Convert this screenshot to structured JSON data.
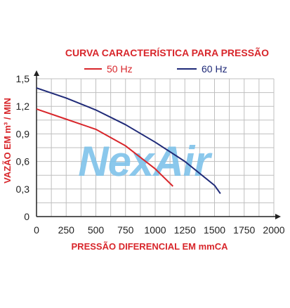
{
  "watermark": {
    "text": "NexAir",
    "color": "#7fc3ea"
  },
  "colors": {
    "series_50hz": "#d8262b",
    "series_60hz": "#1f2a78",
    "title": "#d8262b",
    "axis_label": "#d8262b",
    "grid": "#bfbfbf",
    "axis": "#222222"
  },
  "chart_data": {
    "type": "line",
    "title": "CURVA CARACTERÍSTICA PARA PRESSÃO",
    "xlabel": "PRESSÃO DIFERENCIAL EM mmCA",
    "ylabel": "VAZÃO EM m³ / MIN",
    "xlim": [
      0,
      2000
    ],
    "ylim": [
      0,
      1.5
    ],
    "xticks": [
      0,
      250,
      500,
      750,
      1000,
      1250,
      1500,
      1750,
      2000
    ],
    "xtick_labels": [
      "0",
      "250",
      "500",
      "750",
      "1000",
      "1250",
      "1500",
      "1750",
      "2000"
    ],
    "yticks": [
      0,
      0.3,
      0.6,
      0.9,
      1.2,
      1.5
    ],
    "ytick_labels": [
      "0",
      "0,3",
      "0,6",
      "0,9",
      "1,2",
      "1,5"
    ],
    "grid": true,
    "legend_position": "top",
    "series": [
      {
        "name": "50 Hz",
        "x": [
          0,
          250,
          500,
          750,
          1000,
          1150
        ],
        "y": [
          1.17,
          1.06,
          0.95,
          0.77,
          0.52,
          0.33
        ]
      },
      {
        "name": "60 Hz",
        "x": [
          0,
          250,
          500,
          750,
          1000,
          1250,
          1500,
          1550
        ],
        "y": [
          1.4,
          1.29,
          1.16,
          1.0,
          0.81,
          0.6,
          0.34,
          0.25
        ]
      }
    ]
  }
}
